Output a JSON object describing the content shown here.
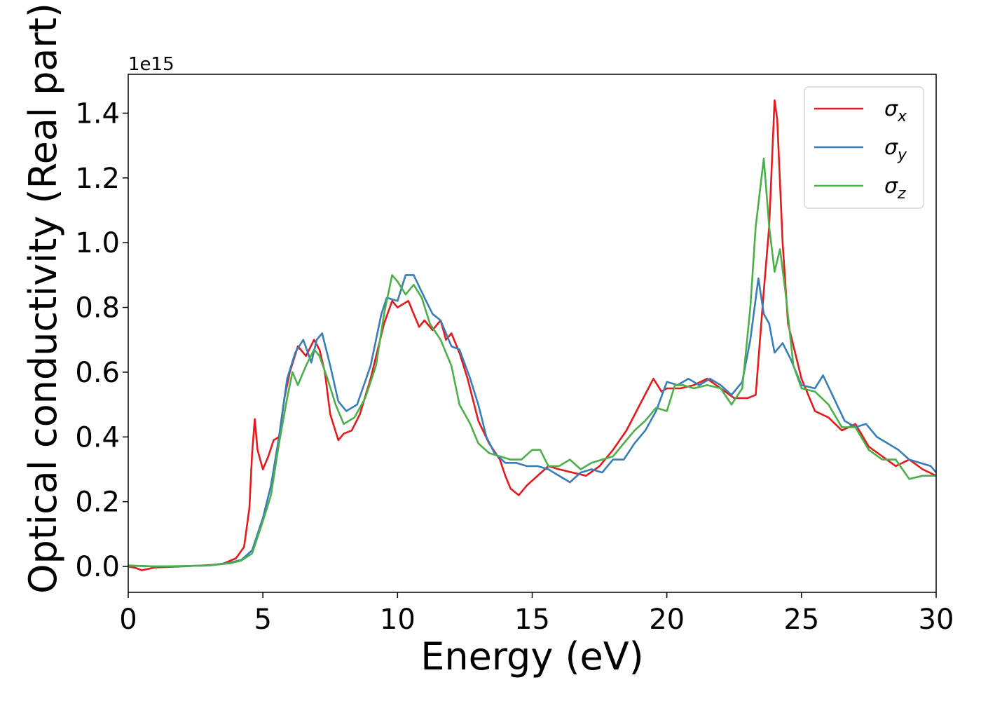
{
  "chart_data": {
    "type": "line",
    "xlabel": "Energy (eV)",
    "ylabel": "Optical conductivity (Real part)",
    "y_offset_label": "1e15",
    "xlim": [
      0,
      30
    ],
    "ylim": [
      -0.08,
      1.52
    ],
    "x_ticks": [
      0,
      5,
      10,
      15,
      20,
      25,
      30
    ],
    "y_ticks": [
      0.0,
      0.2,
      0.4,
      0.6,
      0.8,
      1.0,
      1.2,
      1.4
    ],
    "x_tick_labels": [
      "0",
      "5",
      "10",
      "15",
      "20",
      "25",
      "30"
    ],
    "y_tick_labels": [
      "0.0",
      "0.2",
      "0.4",
      "0.6",
      "0.8",
      "1.0",
      "1.2",
      "1.4"
    ],
    "grid": false,
    "legend_position": "top-right",
    "series": [
      {
        "name": "σx",
        "legend_symbol": "σ",
        "legend_sub": "x",
        "color": "#e41a1c",
        "points": [
          [
            0,
            0
          ],
          [
            0.3,
            -0.005
          ],
          [
            0.5,
            -0.012
          ],
          [
            1,
            -0.003
          ],
          [
            2,
            0.0
          ],
          [
            3,
            0.004
          ],
          [
            3.5,
            0.008
          ],
          [
            4,
            0.025
          ],
          [
            4.3,
            0.06
          ],
          [
            4.5,
            0.18
          ],
          [
            4.6,
            0.35
          ],
          [
            4.7,
            0.455
          ],
          [
            4.8,
            0.36
          ],
          [
            5.0,
            0.3
          ],
          [
            5.2,
            0.34
          ],
          [
            5.4,
            0.39
          ],
          [
            5.6,
            0.4
          ],
          [
            5.8,
            0.52
          ],
          [
            6.0,
            0.6
          ],
          [
            6.3,
            0.68
          ],
          [
            6.6,
            0.65
          ],
          [
            6.9,
            0.7
          ],
          [
            7.1,
            0.67
          ],
          [
            7.3,
            0.6
          ],
          [
            7.5,
            0.47
          ],
          [
            7.8,
            0.39
          ],
          [
            8.0,
            0.41
          ],
          [
            8.3,
            0.42
          ],
          [
            8.6,
            0.47
          ],
          [
            9.0,
            0.58
          ],
          [
            9.5,
            0.75
          ],
          [
            9.8,
            0.82
          ],
          [
            10.0,
            0.8
          ],
          [
            10.2,
            0.81
          ],
          [
            10.4,
            0.82
          ],
          [
            10.6,
            0.78
          ],
          [
            10.8,
            0.74
          ],
          [
            11.0,
            0.76
          ],
          [
            11.3,
            0.73
          ],
          [
            11.6,
            0.76
          ],
          [
            11.8,
            0.7
          ],
          [
            12.0,
            0.72
          ],
          [
            12.3,
            0.66
          ],
          [
            12.6,
            0.58
          ],
          [
            13.0,
            0.45
          ],
          [
            13.4,
            0.38
          ],
          [
            13.8,
            0.33
          ],
          [
            14.0,
            0.28
          ],
          [
            14.2,
            0.24
          ],
          [
            14.5,
            0.22
          ],
          [
            14.8,
            0.25
          ],
          [
            15.2,
            0.28
          ],
          [
            15.6,
            0.31
          ],
          [
            16.0,
            0.3
          ],
          [
            16.5,
            0.29
          ],
          [
            17.0,
            0.28
          ],
          [
            17.5,
            0.31
          ],
          [
            18.0,
            0.36
          ],
          [
            18.5,
            0.42
          ],
          [
            19.0,
            0.5
          ],
          [
            19.5,
            0.58
          ],
          [
            19.8,
            0.54
          ],
          [
            20.0,
            0.55
          ],
          [
            20.5,
            0.55
          ],
          [
            21.0,
            0.56
          ],
          [
            21.5,
            0.58
          ],
          [
            22.0,
            0.55
          ],
          [
            22.5,
            0.52
          ],
          [
            23.0,
            0.52
          ],
          [
            23.3,
            0.53
          ],
          [
            23.6,
            0.85
          ],
          [
            23.8,
            1.05
          ],
          [
            24.0,
            1.44
          ],
          [
            24.1,
            1.38
          ],
          [
            24.3,
            1.0
          ],
          [
            24.5,
            0.75
          ],
          [
            25.0,
            0.58
          ],
          [
            25.5,
            0.48
          ],
          [
            26.0,
            0.46
          ],
          [
            26.5,
            0.42
          ],
          [
            27.0,
            0.44
          ],
          [
            27.5,
            0.37
          ],
          [
            28.0,
            0.34
          ],
          [
            28.5,
            0.31
          ],
          [
            29.0,
            0.33
          ],
          [
            29.5,
            0.3
          ],
          [
            30.0,
            0.28
          ]
        ]
      },
      {
        "name": "σy",
        "legend_symbol": "σ",
        "legend_sub": "y",
        "color": "#377eb8",
        "points": [
          [
            0,
            0.003
          ],
          [
            1,
            0.0
          ],
          [
            2,
            0.001
          ],
          [
            3,
            0.003
          ],
          [
            3.8,
            0.012
          ],
          [
            4.2,
            0.02
          ],
          [
            4.6,
            0.05
          ],
          [
            5.0,
            0.15
          ],
          [
            5.3,
            0.25
          ],
          [
            5.6,
            0.4
          ],
          [
            5.9,
            0.58
          ],
          [
            6.2,
            0.66
          ],
          [
            6.5,
            0.7
          ],
          [
            6.8,
            0.63
          ],
          [
            7.0,
            0.7
          ],
          [
            7.2,
            0.72
          ],
          [
            7.5,
            0.62
          ],
          [
            7.8,
            0.51
          ],
          [
            8.1,
            0.48
          ],
          [
            8.5,
            0.5
          ],
          [
            9.0,
            0.62
          ],
          [
            9.4,
            0.78
          ],
          [
            9.6,
            0.83
          ],
          [
            10.0,
            0.82
          ],
          [
            10.3,
            0.9
          ],
          [
            10.6,
            0.9
          ],
          [
            11.0,
            0.83
          ],
          [
            11.3,
            0.78
          ],
          [
            11.6,
            0.76
          ],
          [
            12.0,
            0.68
          ],
          [
            12.3,
            0.67
          ],
          [
            12.7,
            0.58
          ],
          [
            13.0,
            0.5
          ],
          [
            13.3,
            0.4
          ],
          [
            13.6,
            0.35
          ],
          [
            14.0,
            0.32
          ],
          [
            14.4,
            0.32
          ],
          [
            14.8,
            0.31
          ],
          [
            15.2,
            0.31
          ],
          [
            15.6,
            0.3
          ],
          [
            16.0,
            0.28
          ],
          [
            16.4,
            0.26
          ],
          [
            16.8,
            0.29
          ],
          [
            17.2,
            0.3
          ],
          [
            17.6,
            0.29
          ],
          [
            18.0,
            0.33
          ],
          [
            18.4,
            0.33
          ],
          [
            18.8,
            0.38
          ],
          [
            19.2,
            0.42
          ],
          [
            19.6,
            0.48
          ],
          [
            20.0,
            0.57
          ],
          [
            20.4,
            0.56
          ],
          [
            20.8,
            0.58
          ],
          [
            21.2,
            0.56
          ],
          [
            21.6,
            0.58
          ],
          [
            22.0,
            0.56
          ],
          [
            22.4,
            0.53
          ],
          [
            22.8,
            0.57
          ],
          [
            23.1,
            0.7
          ],
          [
            23.4,
            0.89
          ],
          [
            23.6,
            0.78
          ],
          [
            23.8,
            0.75
          ],
          [
            24.0,
            0.66
          ],
          [
            24.3,
            0.69
          ],
          [
            24.6,
            0.64
          ],
          [
            25.0,
            0.56
          ],
          [
            25.5,
            0.55
          ],
          [
            25.8,
            0.59
          ],
          [
            26.2,
            0.52
          ],
          [
            26.6,
            0.45
          ],
          [
            27.0,
            0.43
          ],
          [
            27.4,
            0.44
          ],
          [
            27.8,
            0.4
          ],
          [
            28.2,
            0.38
          ],
          [
            28.6,
            0.36
          ],
          [
            29.0,
            0.33
          ],
          [
            29.4,
            0.32
          ],
          [
            29.8,
            0.31
          ],
          [
            30.0,
            0.29
          ]
        ]
      },
      {
        "name": "σz",
        "legend_symbol": "σ",
        "legend_sub": "z",
        "color": "#4daf4a",
        "points": [
          [
            0,
            0.002
          ],
          [
            1,
            0.0
          ],
          [
            2,
            0.001
          ],
          [
            3,
            0.003
          ],
          [
            3.8,
            0.01
          ],
          [
            4.2,
            0.018
          ],
          [
            4.6,
            0.04
          ],
          [
            5.0,
            0.14
          ],
          [
            5.3,
            0.22
          ],
          [
            5.6,
            0.38
          ],
          [
            5.9,
            0.52
          ],
          [
            6.1,
            0.6
          ],
          [
            6.3,
            0.56
          ],
          [
            6.6,
            0.62
          ],
          [
            6.9,
            0.67
          ],
          [
            7.1,
            0.65
          ],
          [
            7.4,
            0.58
          ],
          [
            7.7,
            0.5
          ],
          [
            8.0,
            0.44
          ],
          [
            8.4,
            0.46
          ],
          [
            8.8,
            0.52
          ],
          [
            9.2,
            0.62
          ],
          [
            9.5,
            0.78
          ],
          [
            9.8,
            0.9
          ],
          [
            10.0,
            0.88
          ],
          [
            10.3,
            0.84
          ],
          [
            10.6,
            0.87
          ],
          [
            10.9,
            0.83
          ],
          [
            11.2,
            0.75
          ],
          [
            11.6,
            0.7
          ],
          [
            12.0,
            0.62
          ],
          [
            12.3,
            0.5
          ],
          [
            12.7,
            0.44
          ],
          [
            13.0,
            0.38
          ],
          [
            13.4,
            0.35
          ],
          [
            13.8,
            0.34
          ],
          [
            14.2,
            0.33
          ],
          [
            14.6,
            0.33
          ],
          [
            15.0,
            0.36
          ],
          [
            15.3,
            0.36
          ],
          [
            15.6,
            0.31
          ],
          [
            16.0,
            0.31
          ],
          [
            16.4,
            0.33
          ],
          [
            16.8,
            0.3
          ],
          [
            17.2,
            0.32
          ],
          [
            17.6,
            0.33
          ],
          [
            18.0,
            0.34
          ],
          [
            18.4,
            0.38
          ],
          [
            18.8,
            0.42
          ],
          [
            19.2,
            0.45
          ],
          [
            19.6,
            0.49
          ],
          [
            20.0,
            0.48
          ],
          [
            20.3,
            0.56
          ],
          [
            20.6,
            0.56
          ],
          [
            21.0,
            0.55
          ],
          [
            21.5,
            0.56
          ],
          [
            22.0,
            0.55
          ],
          [
            22.4,
            0.5
          ],
          [
            22.8,
            0.55
          ],
          [
            23.1,
            0.8
          ],
          [
            23.3,
            1.05
          ],
          [
            23.6,
            1.26
          ],
          [
            23.8,
            1.05
          ],
          [
            24.0,
            0.91
          ],
          [
            24.2,
            0.98
          ],
          [
            24.4,
            0.85
          ],
          [
            24.7,
            0.62
          ],
          [
            25.0,
            0.55
          ],
          [
            25.5,
            0.54
          ],
          [
            26.0,
            0.5
          ],
          [
            26.5,
            0.43
          ],
          [
            27.0,
            0.43
          ],
          [
            27.5,
            0.36
          ],
          [
            28.0,
            0.33
          ],
          [
            28.5,
            0.33
          ],
          [
            29.0,
            0.27
          ],
          [
            29.5,
            0.28
          ],
          [
            30.0,
            0.28
          ]
        ]
      }
    ]
  }
}
